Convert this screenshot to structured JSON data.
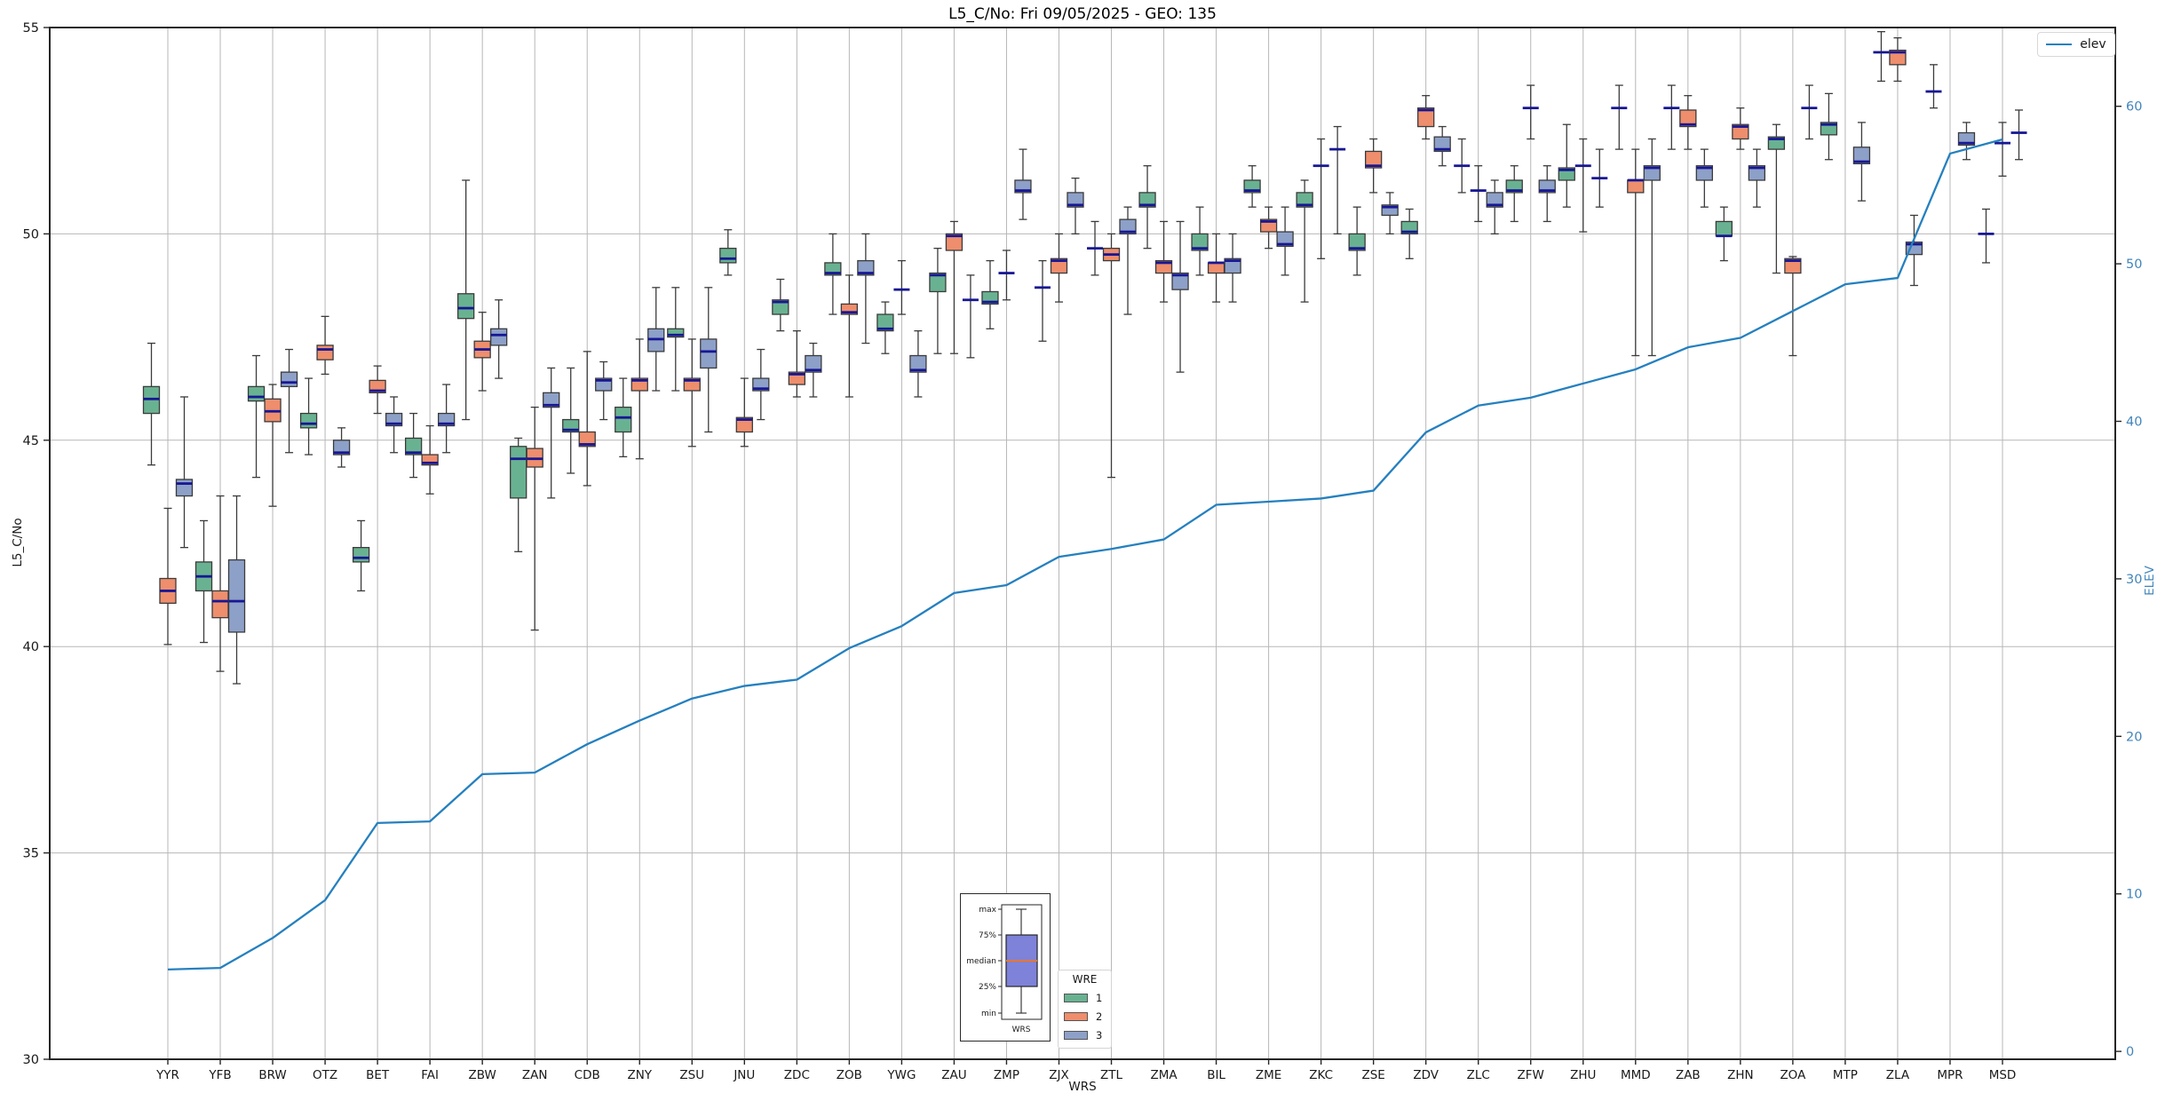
{
  "title": "L5_C/No: Fri 09/05/2025 - GEO: 135",
  "axes": {
    "ylabel_left": "L5_C/No",
    "ylabel_right": "ELEV",
    "xlabel": "WRS"
  },
  "legend": {
    "elev_label": "elev",
    "wre_title": "WRE",
    "wre_items": [
      {
        "label": "1",
        "color": "#69b291"
      },
      {
        "label": "2",
        "color": "#ee8e6d"
      },
      {
        "label": "3",
        "color": "#8da0c8"
      }
    ]
  },
  "inset": {
    "labels": [
      "max",
      "75%",
      "median",
      "25%",
      "min"
    ],
    "xlabel": "WRS",
    "box_color": "#7e82d8",
    "median_color": "#e8772e"
  },
  "colors": {
    "median": "#171794",
    "box_edge": "#3b3b3b",
    "whisker": "#3b3b3b",
    "grid": "#b7b7b7",
    "spine": "#262626",
    "elev_line": "#2580bf",
    "right_axis_text": "#4285bb",
    "tick_text": "#191919"
  },
  "chart_data": {
    "type": "boxplot+line",
    "title": "L5_C/No: Fri 09/05/2025 - GEO: 135",
    "xlabel": "WRS",
    "ylabel": "L5_C/No",
    "ylabel_right": "ELEV",
    "ylim_left": [
      30,
      55
    ],
    "yticks_left": [
      30,
      35,
      40,
      45,
      50,
      55
    ],
    "ylim_right": [
      -0.5,
      65
    ],
    "yticks_right": [
      0,
      10,
      20,
      30,
      40,
      50,
      60
    ],
    "grid": true,
    "legend_position": {
      "elev": "upper right",
      "wre": "lower center"
    },
    "box_format": [
      "median",
      "q1",
      "q3",
      "whisker_low",
      "whisker_high"
    ],
    "wre_groups": [
      "1",
      "2",
      "3"
    ],
    "categories": [
      "YYR",
      "YFB",
      "BRW",
      "OTZ",
      "BET",
      "FAI",
      "ZBW",
      "ZAN",
      "CDB",
      "ZNY",
      "ZSU",
      "JNU",
      "ZDC",
      "ZOB",
      "YWG",
      "ZAU",
      "ZMP",
      "ZJX",
      "ZTL",
      "ZMA",
      "BIL",
      "ZME",
      "ZKC",
      "ZSE",
      "ZDV",
      "ZLC",
      "ZFW",
      "ZHU",
      "MMD",
      "ZAB",
      "ZHN",
      "ZOA",
      "MTP",
      "ZLA",
      "MPR",
      "MSD"
    ],
    "elev": [
      5.2,
      5.3,
      7.2,
      9.6,
      14.5,
      14.6,
      17.6,
      17.7,
      19.5,
      21.0,
      22.4,
      23.2,
      23.6,
      25.6,
      27.0,
      29.1,
      29.6,
      31.4,
      31.9,
      32.5,
      34.7,
      34.9,
      35.1,
      35.6,
      39.3,
      41.0,
      41.5,
      42.4,
      43.3,
      44.7,
      45.3,
      47.0,
      48.7,
      49.1,
      57.0,
      57.9
    ],
    "boxes": [
      {
        "1": [
          46.0,
          45.65,
          46.3,
          44.4,
          47.35
        ],
        "2": [
          41.35,
          41.05,
          41.65,
          40.05,
          43.35
        ],
        "3": [
          43.95,
          43.65,
          44.05,
          42.4,
          46.05
        ]
      },
      {
        "1": [
          41.7,
          41.35,
          42.05,
          40.1,
          43.05
        ],
        "2": [
          41.1,
          40.7,
          41.35,
          39.4,
          43.65
        ],
        "3": [
          41.1,
          40.35,
          42.1,
          39.1,
          43.65
        ]
      },
      {
        "1": [
          46.05,
          45.95,
          46.3,
          44.1,
          47.05
        ],
        "2": [
          45.7,
          45.45,
          46.0,
          43.4,
          46.35
        ],
        "3": [
          46.4,
          46.3,
          46.65,
          44.7,
          47.2
        ]
      },
      {
        "1": [
          45.4,
          45.3,
          45.65,
          44.65,
          46.5
        ],
        "2": [
          47.2,
          46.95,
          47.3,
          46.6,
          48.0
        ],
        "3": [
          44.7,
          44.65,
          45.0,
          44.35,
          45.3
        ]
      },
      {
        "1": [
          42.15,
          42.05,
          42.4,
          41.35,
          43.05
        ],
        "2": [
          46.2,
          46.15,
          46.45,
          45.65,
          46.8
        ],
        "3": [
          45.4,
          45.35,
          45.65,
          44.7,
          46.05
        ]
      },
      {
        "1": [
          44.7,
          44.65,
          45.05,
          44.1,
          45.65
        ],
        "2": [
          44.45,
          44.4,
          44.65,
          43.7,
          45.35
        ],
        "3": [
          45.4,
          45.35,
          45.65,
          44.7,
          46.35
        ]
      },
      {
        "1": [
          48.2,
          47.95,
          48.55,
          45.5,
          51.3
        ],
        "2": [
          47.2,
          47.0,
          47.4,
          46.2,
          48.1
        ],
        "3": [
          47.55,
          47.3,
          47.7,
          46.5,
          48.4
        ]
      },
      {
        "1": [
          44.55,
          43.6,
          44.85,
          42.3,
          45.05
        ],
        "2": [
          44.55,
          44.35,
          44.8,
          40.4,
          45.8
        ],
        "3": [
          45.85,
          45.8,
          46.15,
          43.6,
          46.75
        ]
      },
      {
        "1": [
          45.25,
          45.2,
          45.5,
          44.2,
          46.75
        ],
        "2": [
          44.9,
          44.85,
          45.2,
          43.9,
          47.15
        ],
        "3": [
          46.45,
          46.2,
          46.5,
          45.5,
          46.9
        ]
      },
      {
        "1": [
          45.55,
          45.2,
          45.8,
          44.6,
          46.5
        ],
        "2": [
          46.45,
          46.2,
          46.5,
          44.55,
          47.45
        ],
        "3": [
          47.45,
          47.15,
          47.7,
          46.2,
          48.7
        ]
      },
      {
        "1": [
          47.55,
          47.5,
          47.7,
          46.2,
          48.7
        ],
        "2": [
          46.45,
          46.2,
          46.5,
          44.85,
          47.45
        ],
        "3": [
          47.15,
          46.75,
          47.45,
          45.2,
          48.7
        ]
      },
      {
        "1": [
          49.4,
          49.3,
          49.65,
          49.0,
          50.1
        ],
        "2": [
          45.5,
          45.2,
          45.55,
          44.85,
          46.5
        ],
        "3": [
          46.25,
          46.2,
          46.5,
          45.5,
          47.2
        ]
      },
      {
        "1": [
          48.35,
          48.05,
          48.4,
          47.65,
          48.9
        ],
        "2": [
          46.6,
          46.35,
          46.65,
          46.05,
          47.65
        ],
        "3": [
          46.7,
          46.65,
          47.05,
          46.05,
          47.35
        ]
      },
      {
        "1": [
          49.05,
          49.0,
          49.3,
          48.05,
          50.0
        ],
        "2": [
          48.1,
          48.05,
          48.3,
          46.05,
          49.0
        ],
        "3": [
          49.05,
          49.0,
          49.35,
          47.35,
          50.0
        ]
      },
      {
        "1": [
          47.7,
          47.65,
          48.05,
          47.1,
          48.35
        ],
        "2": [
          48.65,
          48.65,
          48.65,
          48.05,
          49.35
        ],
        "3": [
          46.7,
          46.65,
          47.05,
          46.05,
          47.65
        ]
      },
      {
        "1": [
          49.0,
          48.6,
          49.05,
          47.1,
          49.65
        ],
        "2": [
          49.95,
          49.6,
          50.0,
          47.1,
          50.3
        ],
        "3": [
          48.4,
          48.4,
          48.4,
          47.0,
          49.0
        ]
      },
      {
        "1": [
          48.35,
          48.3,
          48.6,
          47.7,
          49.35
        ],
        "2": [
          49.05,
          49.05,
          49.05,
          48.4,
          49.6
        ],
        "3": [
          51.05,
          51.0,
          51.3,
          50.35,
          52.05
        ]
      },
      {
        "1": [
          48.7,
          48.7,
          48.7,
          47.4,
          49.35
        ],
        "2": [
          49.35,
          49.05,
          49.4,
          48.35,
          50.0
        ],
        "3": [
          50.7,
          50.65,
          51.0,
          50.0,
          51.35
        ]
      },
      {
        "1": [
          49.65,
          49.65,
          49.65,
          49.0,
          50.3
        ],
        "2": [
          49.5,
          49.35,
          49.65,
          44.1,
          50.0
        ],
        "3": [
          50.05,
          50.0,
          50.35,
          48.05,
          50.65
        ]
      },
      {
        "1": [
          50.7,
          50.65,
          51.0,
          49.65,
          51.65
        ],
        "2": [
          49.3,
          49.05,
          49.35,
          48.35,
          50.3
        ],
        "3": [
          49.0,
          48.65,
          49.05,
          46.65,
          50.3
        ]
      },
      {
        "1": [
          49.65,
          49.6,
          50.0,
          49.0,
          50.65
        ],
        "2": [
          49.3,
          49.05,
          49.3,
          48.35,
          50.0
        ],
        "3": [
          49.35,
          49.05,
          49.4,
          48.35,
          50.0
        ]
      },
      {
        "1": [
          51.05,
          51.0,
          51.3,
          50.65,
          51.65
        ],
        "2": [
          50.3,
          50.05,
          50.35,
          49.65,
          50.65
        ],
        "3": [
          49.75,
          49.7,
          50.05,
          49.0,
          50.65
        ]
      },
      {
        "1": [
          50.7,
          50.65,
          51.0,
          48.35,
          51.3
        ],
        "2": [
          51.65,
          51.65,
          51.65,
          49.4,
          52.3
        ],
        "3": [
          52.05,
          52.05,
          52.05,
          50.0,
          52.6
        ]
      },
      {
        "1": [
          49.65,
          49.6,
          50.0,
          49.0,
          50.65
        ],
        "2": [
          51.65,
          51.6,
          52.0,
          51.0,
          52.3
        ],
        "3": [
          50.65,
          50.45,
          50.7,
          50.0,
          51.0
        ]
      },
      {
        "1": [
          50.05,
          50.0,
          50.3,
          49.4,
          50.6
        ],
        "2": [
          53.0,
          52.6,
          53.05,
          52.3,
          53.35
        ],
        "3": [
          52.05,
          52.0,
          52.35,
          51.65,
          52.6
        ]
      },
      {
        "1": [
          51.65,
          51.65,
          51.65,
          51.0,
          52.3
        ],
        "2": [
          51.05,
          51.05,
          51.05,
          50.3,
          51.65
        ],
        "3": [
          50.7,
          50.65,
          51.0,
          50.0,
          51.3
        ]
      },
      {
        "1": [
          51.05,
          51.0,
          51.3,
          50.3,
          51.65
        ],
        "2": [
          53.05,
          53.05,
          53.05,
          52.3,
          53.6
        ],
        "3": [
          51.05,
          51.0,
          51.3,
          50.3,
          51.65
        ]
      },
      {
        "1": [
          51.55,
          51.3,
          51.6,
          50.65,
          52.65
        ],
        "2": [
          51.65,
          51.65,
          51.65,
          50.05,
          52.3
        ],
        "3": [
          51.35,
          51.35,
          51.35,
          50.65,
          52.05
        ]
      },
      {
        "1": [
          53.05,
          53.05,
          53.05,
          52.05,
          53.6
        ],
        "2": [
          51.3,
          51.0,
          51.3,
          47.05,
          52.05
        ],
        "3": [
          51.6,
          51.3,
          51.65,
          47.05,
          52.3
        ]
      },
      {
        "1": [
          53.05,
          53.05,
          53.05,
          52.05,
          53.6
        ],
        "2": [
          52.65,
          52.6,
          53.0,
          52.05,
          53.35
        ],
        "3": [
          51.6,
          51.3,
          51.65,
          50.65,
          52.05
        ]
      },
      {
        "1": [
          49.95,
          49.95,
          50.3,
          49.35,
          50.65
        ],
        "2": [
          52.6,
          52.3,
          52.65,
          52.05,
          53.05
        ],
        "3": [
          51.6,
          51.3,
          51.65,
          50.65,
          52.05
        ]
      },
      {
        "1": [
          52.3,
          52.05,
          52.35,
          49.05,
          52.65
        ],
        "2": [
          49.35,
          49.05,
          49.4,
          47.05,
          49.45
        ],
        "3": [
          53.05,
          53.05,
          53.05,
          52.3,
          53.6
        ]
      },
      {
        "1": [
          52.65,
          52.4,
          52.7,
          51.8,
          53.4
        ],
        "2": null,
        "3": [
          51.75,
          51.7,
          52.1,
          50.8,
          52.7
        ]
      },
      {
        "1": [
          54.4,
          54.4,
          54.4,
          53.7,
          54.9
        ],
        "2": [
          54.4,
          54.1,
          54.45,
          53.7,
          54.75
        ],
        "3": [
          49.75,
          49.5,
          49.8,
          48.75,
          50.45
        ]
      },
      {
        "1": [
          53.45,
          53.45,
          53.45,
          53.05,
          54.1
        ],
        "2": null,
        "3": [
          52.2,
          52.15,
          52.45,
          51.8,
          52.7
        ]
      },
      {
        "1": [
          50.0,
          50.0,
          50.0,
          49.3,
          50.6
        ],
        "2": [
          52.2,
          52.2,
          52.2,
          51.4,
          52.7
        ],
        "3": [
          52.45,
          52.45,
          52.45,
          51.8,
          53.0
        ]
      }
    ]
  }
}
